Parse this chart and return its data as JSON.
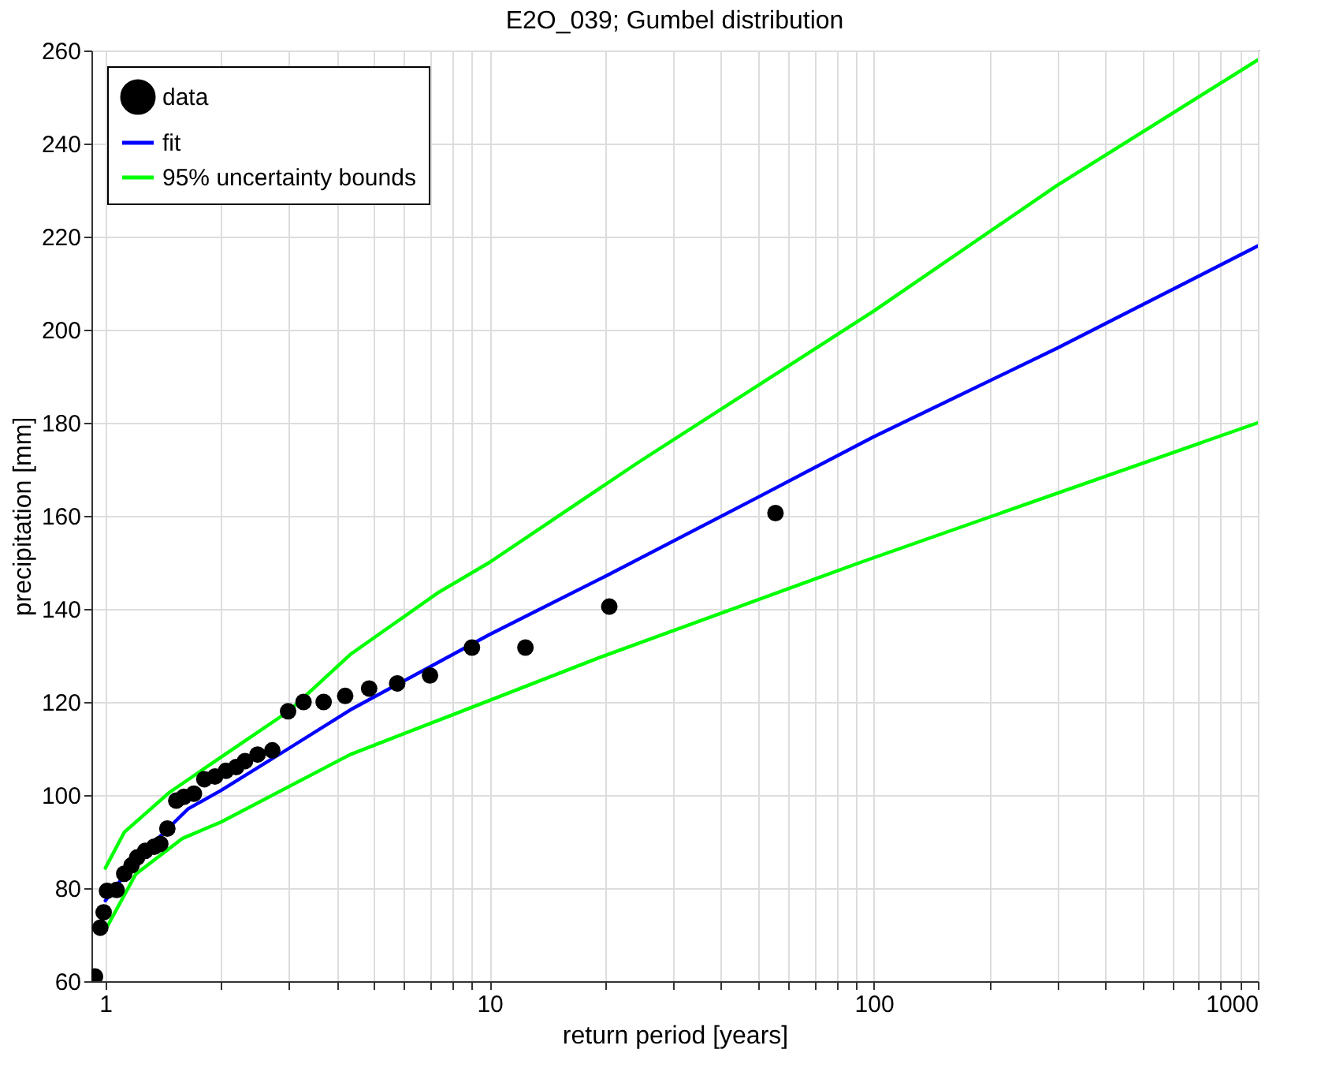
{
  "chart_data": {
    "type": "line",
    "title": "E2O_039; Gumbel distribution",
    "xlabel": "return period [years]",
    "ylabel": "precipitation [mm]",
    "log": "x",
    "grid": true,
    "legend": "top left",
    "xlim": [
      0.92,
      1000
    ],
    "ylim": [
      60,
      260
    ],
    "xticks": [
      1,
      {
        "value": 2,
        "label": null
      },
      {
        "value": 3,
        "label": null
      },
      {
        "value": 4,
        "label": null
      },
      {
        "value": 5,
        "label": null
      },
      {
        "value": 6,
        "label": null
      },
      {
        "value": 7,
        "label": null
      },
      {
        "value": 8,
        "label": null
      },
      {
        "value": 9,
        "label": null
      },
      10,
      {
        "value": 20,
        "label": null
      },
      {
        "value": 30,
        "label": null
      },
      {
        "value": 40,
        "label": null
      },
      {
        "value": 50,
        "label": null
      },
      {
        "value": 60,
        "label": null
      },
      {
        "value": 70,
        "label": null
      },
      {
        "value": 80,
        "label": null
      },
      {
        "value": 90,
        "label": null
      },
      100,
      {
        "value": 200,
        "label": null
      },
      {
        "value": 300,
        "label": null
      },
      {
        "value": 400,
        "label": null
      },
      {
        "value": 500,
        "label": null
      },
      {
        "value": 600,
        "label": null
      },
      {
        "value": 700,
        "label": null
      },
      {
        "value": 800,
        "label": null
      },
      {
        "value": 900,
        "label": null
      },
      1000
    ],
    "yticks": [
      60,
      80,
      100,
      120,
      140,
      160,
      180,
      200,
      220,
      240,
      260
    ],
    "series": [
      {
        "name": "data",
        "type": "scatter",
        "marker": "circle",
        "color": "#000000",
        "x": [
          0.94,
          0.97,
          0.99,
          1.01,
          1.07,
          1.12,
          1.17,
          1.21,
          1.27,
          1.34,
          1.39,
          1.45,
          1.53,
          1.6,
          1.7,
          1.81,
          1.93,
          2.06,
          2.19,
          2.31,
          2.49,
          2.72,
          2.99,
          3.28,
          3.7,
          4.21,
          4.86,
          5.75,
          7.0,
          9.0,
          12.4,
          20.5,
          55.5
        ],
        "values": [
          61,
          71.5,
          74.8,
          79.4,
          79.6,
          83.1,
          84.9,
          86.6,
          88,
          88.9,
          89.5,
          92.8,
          98.8,
          99.6,
          100.3,
          103.4,
          104,
          105.2,
          106,
          107.3,
          108.7,
          109.6,
          118,
          120,
          120,
          121.3,
          122.9,
          124,
          125.7,
          131.7,
          131.7,
          140.5,
          160.6
        ]
      },
      {
        "name": "fit",
        "color": "#0000ff",
        "x": [
          1.0,
          1.2,
          1.64,
          2,
          3,
          4.34,
          10,
          20,
          50,
          100,
          300,
          1000
        ],
        "values": [
          77.3,
          86,
          97,
          101,
          110,
          118.3,
          134.5,
          147,
          164,
          177,
          196,
          218
        ]
      },
      {
        "name": "95% uncertainty bounds",
        "color": "#00ff00",
        "x": [
          1.0,
          1.12,
          1.47,
          1.87,
          3.0,
          4.34,
          7.35,
          10,
          24.3,
          100,
          300,
          1000
        ],
        "values": [
          84.3,
          92,
          100.6,
          106.5,
          118,
          130.2,
          143.5,
          150,
          171.4,
          204,
          231,
          258
        ]
      },
      {
        "color": "#00ff00",
        "x": [
          1.0,
          1.2,
          1.59,
          2,
          4.34,
          8.1,
          19.4,
          92.4,
          1000
        ],
        "values": [
          71,
          83,
          90.7,
          94.2,
          108.7,
          117.4,
          129.6,
          150,
          180
        ]
      }
    ]
  }
}
